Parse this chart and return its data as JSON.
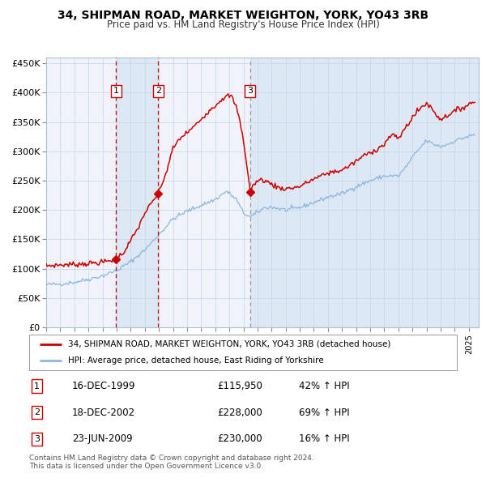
{
  "title_line1": "34, SHIPMAN ROAD, MARKET WEIGHTON, YORK, YO43 3RB",
  "title_line2": "Price paid vs. HM Land Registry's House Price Index (HPI)",
  "legend_red": "34, SHIPMAN ROAD, MARKET WEIGHTON, YORK, YO43 3RB (detached house)",
  "legend_blue": "HPI: Average price, detached house, East Riding of Yorkshire",
  "transactions": [
    {
      "num": 1,
      "date": "16-DEC-1999",
      "price": "£115,950",
      "hpi_pct": "42%",
      "hpi_dir": "↑"
    },
    {
      "num": 2,
      "date": "18-DEC-2002",
      "price": "£228,000",
      "hpi_pct": "69%",
      "hpi_dir": "↑"
    },
    {
      "num": 3,
      "date": "23-JUN-2009",
      "price": "£230,000",
      "hpi_pct": "16%",
      "hpi_dir": "↑"
    }
  ],
  "transaction_dates_decimal": [
    1999.96,
    2002.96,
    2009.47
  ],
  "transaction_prices": [
    115950,
    228000,
    230000
  ],
  "footer": "Contains HM Land Registry data © Crown copyright and database right 2024.\nThis data is licensed under the Open Government Licence v3.0.",
  "bg_color": "#ffffff",
  "plot_bg": "#f0f4fa",
  "red_color": "#cc0000",
  "blue_color": "#7aacdc",
  "highlight_bg": "#dde8f5",
  "dashed_red": "#cc0000",
  "dashed_grey": "#999999",
  "ylim": [
    0,
    460000
  ],
  "xlim_start": 1995.0,
  "xlim_end": 2025.4
}
